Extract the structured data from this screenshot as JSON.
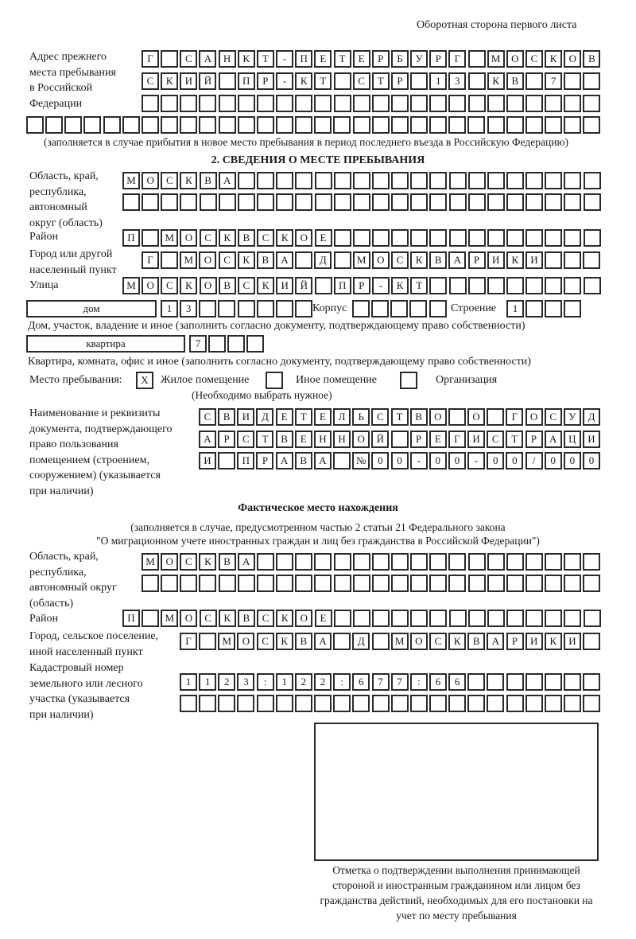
{
  "header": "Оборотная сторона первого листа",
  "previous_address": {
    "label": "Адрес прежнего\nместа пребывания\nв Российской\nФедерации",
    "rows": [
      "Г САНКТ-ПЕТЕРБУРГ МОСКОВ",
      "СКИЙ ПР-КТ СТР 13 КВ 7  ",
      "                        ",
      "                              "
    ],
    "note": "(заполняется в случае прибытия в новое место пребывания в период последнего въезда в Российскую Федерацию)"
  },
  "section2": {
    "title": "2. СВЕДЕНИЯ О МЕСТЕ ПРЕБЫВАНИЯ",
    "region_label": "Область, край,\nреспублика,\nавтономный\nокруг (область)",
    "region_rows": [
      "МОСКВА                   ",
      "                         "
    ],
    "district_label": "Район",
    "district": "П МОСКВСКОЕ              ",
    "city_label": "Город или другой\nнаселенный пункт",
    "city": "Г МОСКВА Д МОСКВАРИКИ   ",
    "street_label": "Улица",
    "street": "МОСКОВСКИЙ ПР-КТ         ",
    "house_type": "дом",
    "house": "13      ",
    "korpus_label": "Корпус",
    "korpus": "     ",
    "building_label": "Строение",
    "building": "1   ",
    "house_note": "Дом, участок, владение и иное (заполнить согласно документу, подтверждающему право собственности)",
    "apt_type": "квартира",
    "apt": "7   ",
    "apt_note": "Квартира, комната, офис и иное (заполнить согласно документу, подтверждающему право собственности)",
    "stay_label": "Место пребывания:",
    "stay_options": [
      {
        "label": "Жилое помещение",
        "mark": "X"
      },
      {
        "label": "Иное помещение",
        "mark": ""
      },
      {
        "label": "Организация",
        "mark": ""
      }
    ],
    "stay_note": "(Необходимо выбрать нужное)",
    "doc_label": "Наименование и реквизиты\nдокумента, подтверждающего\nправо пользования\nпомещением (строением,\nсооружением) (указывается\nпри наличии)",
    "doc_rows": [
      "СВИДЕТЕЛЬСТВО О ГОСУД",
      "АРСТВЕННОЙ РЕГИСТРАЦИ",
      "И ПРАВА №00-00-00/000"
    ]
  },
  "actual": {
    "title": "Фактическое место нахождения",
    "note1": "(заполняется в случае, предусмотренном частью 2 статьи 21 Федерального закона",
    "note2": "\"О миграционном учете иностранных граждан и лиц без гражданства в Российской Федерации\")",
    "region_label": "Область, край,\nреспублика,\nавтономный округ\n(область)",
    "region_rows": [
      "МОСКВА                  ",
      "                        "
    ],
    "district_label": "Район",
    "district": "П МОСКВСКОЕ              ",
    "city_label": "Город, сельское поселение,\nиной населенный пункт",
    "city": "Г МОСКВА Д МОСКВАРИКИ ",
    "cadastral_label": "Кадастровый номер\nземельного или лесного\nучастка (указывается\nпри наличии)",
    "cadastral_rows": [
      "1123:122:677:66       ",
      "                      "
    ]
  },
  "confirmation_caption": "Отметка о подтверждении выполнения принимающей стороной и иностранным гражданином или лицом без гражданства действий, необходимых для его постановки на учет по месту пребывания"
}
